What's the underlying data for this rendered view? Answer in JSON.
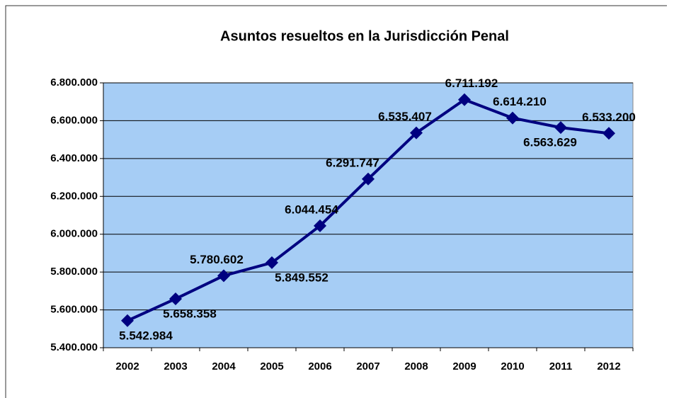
{
  "chart_data": {
    "type": "line",
    "title": "Asuntos resueltos en la Jurisdicción Penal",
    "categories": [
      "2002",
      "2003",
      "2004",
      "2005",
      "2006",
      "2007",
      "2008",
      "2009",
      "2010",
      "2011",
      "2012"
    ],
    "series": [
      {
        "name": "Asuntos resueltos",
        "color": "#000080",
        "values": [
          5542984,
          5658358,
          5780602,
          5849552,
          6044454,
          6291747,
          6535407,
          6711192,
          6614210,
          6563629,
          6533200
        ],
        "value_labels": [
          "5.542.984",
          "5.658.358",
          "5.780.602",
          "5.849.552",
          "6.044.454",
          "6.291.747",
          "6.535.407",
          "6.711.192",
          "6.614.210",
          "6.563.629",
          "6.533.200"
        ]
      }
    ],
    "ylim": [
      5400000,
      6800000
    ],
    "yticks": [
      {
        "value": 5400000,
        "label": "5.400.000"
      },
      {
        "value": 5600000,
        "label": "5.600.000"
      },
      {
        "value": 5800000,
        "label": "5.800.000"
      },
      {
        "value": 6000000,
        "label": "6.000.000"
      },
      {
        "value": 6200000,
        "label": "6.200.000"
      },
      {
        "value": 6400000,
        "label": "6.400.000"
      },
      {
        "value": 6600000,
        "label": "6.600.000"
      },
      {
        "value": 6800000,
        "label": "6.800.000"
      }
    ],
    "grid": true,
    "background": "#a6cdf5"
  }
}
